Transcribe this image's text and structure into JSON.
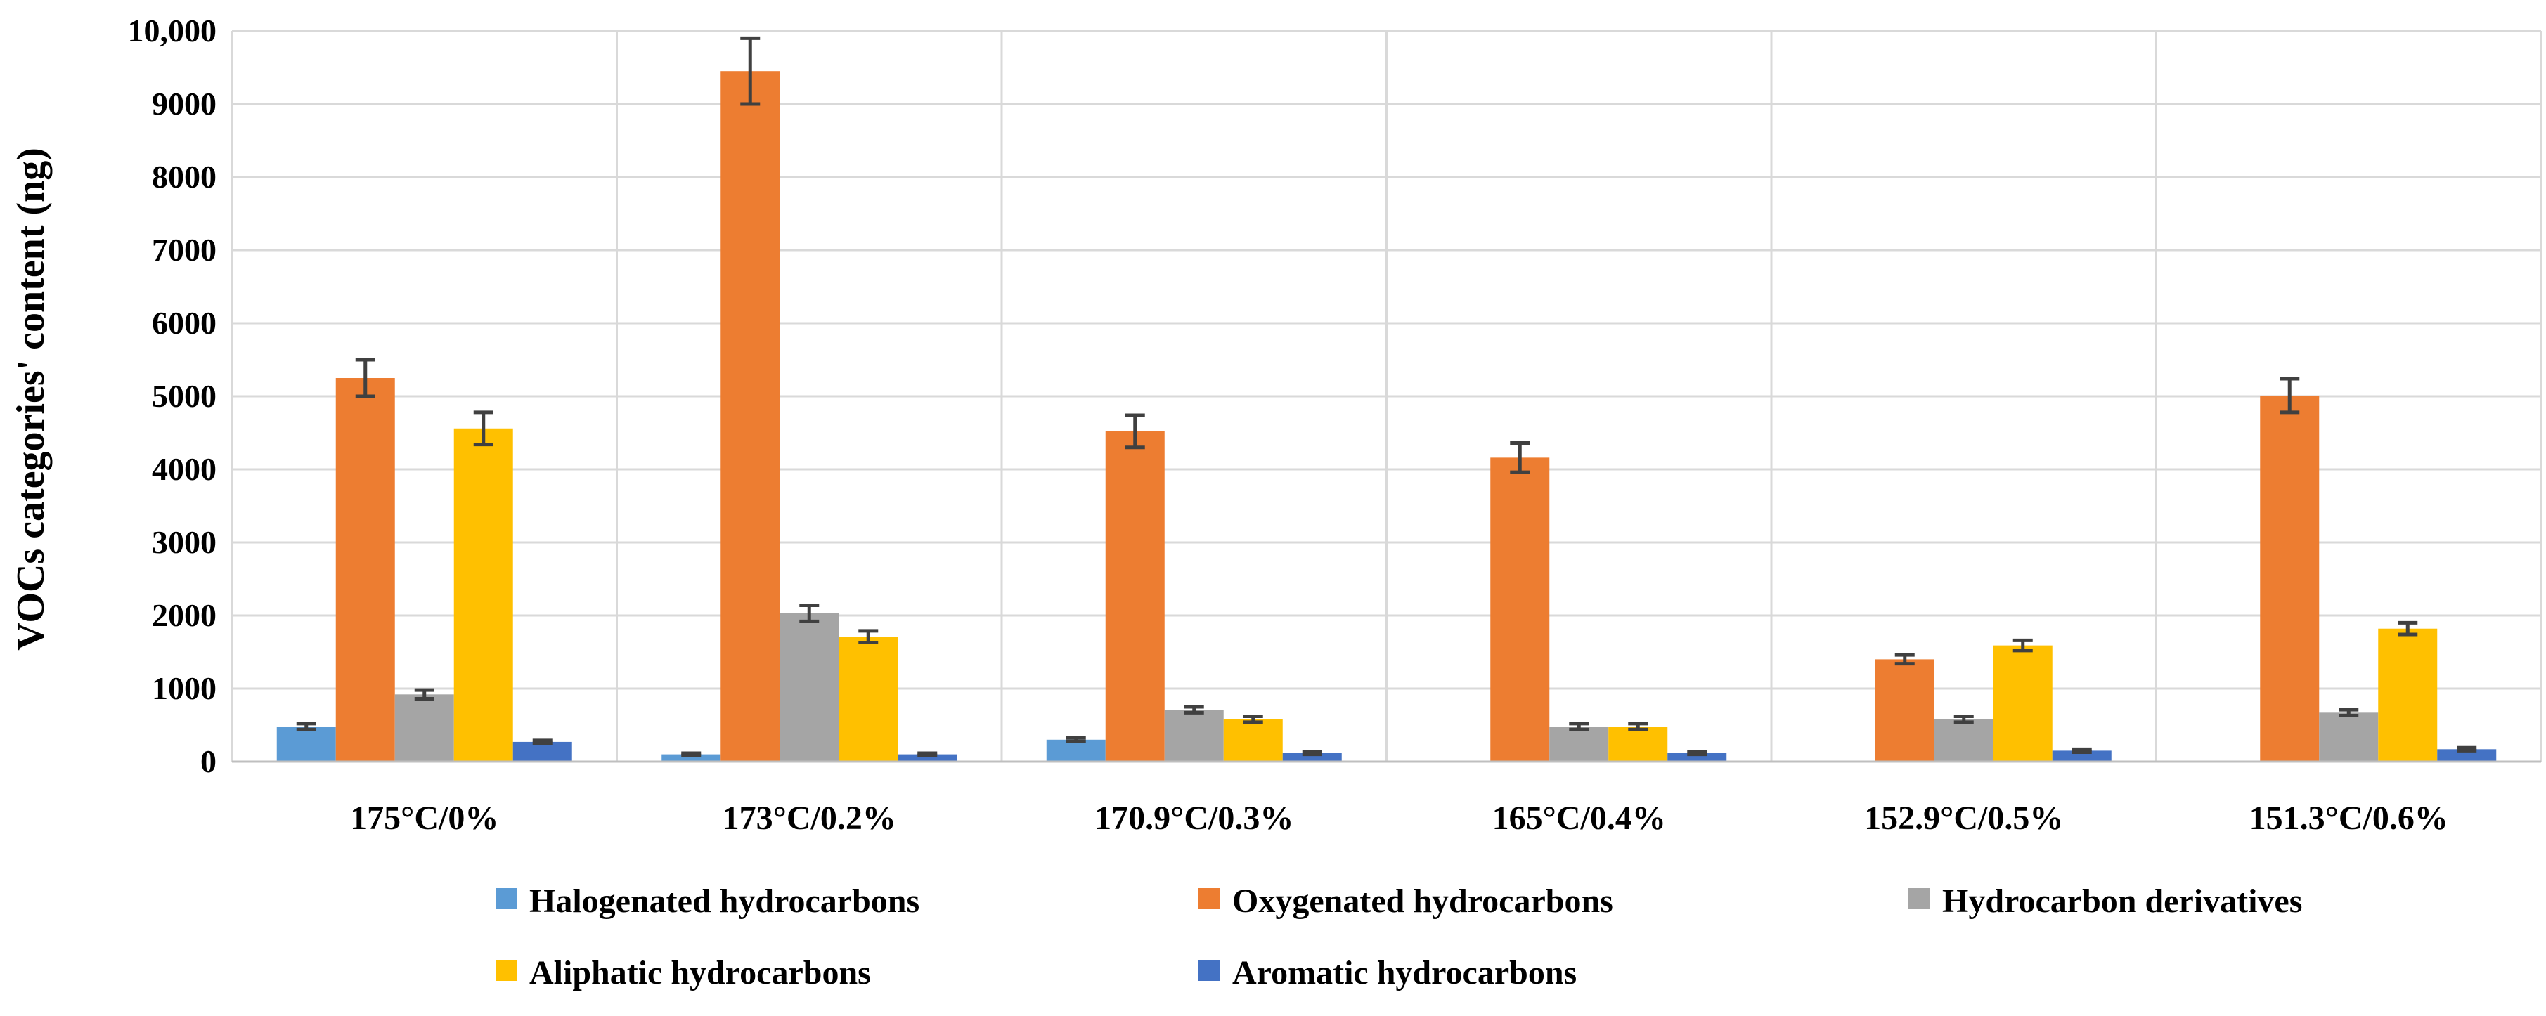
{
  "chart_data": {
    "type": "bar",
    "title": "",
    "xlabel": "",
    "ylabel": "VOCs categories' content (ng)",
    "ylim": [
      0,
      10000
    ],
    "yticks": [
      0,
      1000,
      2000,
      3000,
      4000,
      5000,
      6000,
      7000,
      8000,
      9000,
      10000
    ],
    "ytick_labels": [
      "0",
      "1000",
      "2000",
      "3000",
      "4000",
      "5000",
      "6000",
      "7000",
      "8000",
      "9000",
      "10,000"
    ],
    "grid": true,
    "legend_position": "bottom",
    "categories": [
      "175°C/0%",
      "173°C/0.2%",
      "170.9°C/0.3%",
      "165°C/0.4%",
      "152.9°C/0.5%",
      "151.3°C/0.6%"
    ],
    "series": [
      {
        "name": "Halogenated hydrocarbons",
        "color": "#5B9BD5",
        "values": [
          480,
          100,
          300,
          0,
          0,
          0
        ],
        "errors": [
          40,
          15,
          25,
          0,
          0,
          0
        ]
      },
      {
        "name": "Oxygenated hydrocarbons",
        "color": "#ED7D31",
        "values": [
          5250,
          9450,
          4520,
          4160,
          1400,
          5010
        ],
        "errors": [
          250,
          450,
          220,
          200,
          60,
          230
        ]
      },
      {
        "name": "Hydrocarbon derivatives",
        "color": "#A5A5A5",
        "values": [
          920,
          2030,
          710,
          480,
          580,
          670
        ],
        "errors": [
          60,
          110,
          40,
          40,
          40,
          40
        ]
      },
      {
        "name": "Aliphatic hydrocarbons",
        "color": "#FFC000",
        "values": [
          4560,
          1710,
          580,
          480,
          1590,
          1820
        ],
        "errors": [
          220,
          80,
          40,
          40,
          70,
          80
        ]
      },
      {
        "name": "Aromatic hydrocarbons",
        "color": "#4472C4",
        "values": [
          270,
          100,
          120,
          120,
          150,
          170
        ],
        "errors": [
          20,
          15,
          20,
          20,
          20,
          20
        ]
      }
    ]
  }
}
